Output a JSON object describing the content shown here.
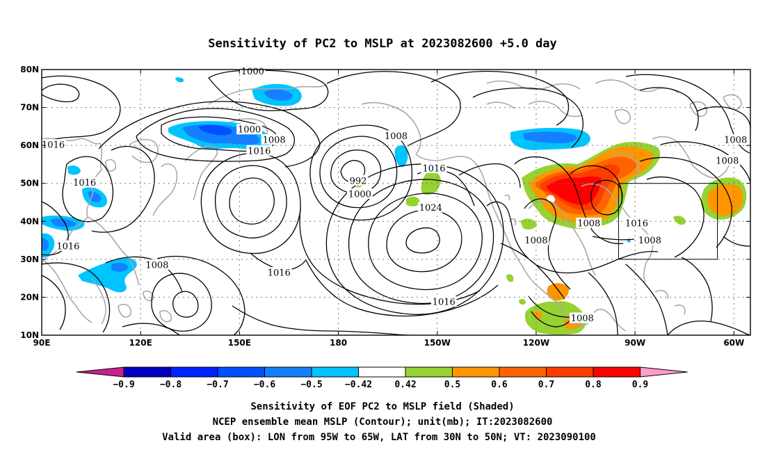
{
  "title": "Sensitivity of PC2 to MSLP at 2023082600 +5.0 day",
  "map": {
    "lon_range": [
      90,
      305
    ],
    "lat_range": [
      10,
      80
    ],
    "x_ticks": [
      {
        "lon": 90,
        "label": "90E"
      },
      {
        "lon": 120,
        "label": "120E"
      },
      {
        "lon": 150,
        "label": "150E"
      },
      {
        "lon": 180,
        "label": "180"
      },
      {
        "lon": 210,
        "label": "150W"
      },
      {
        "lon": 240,
        "label": "120W"
      },
      {
        "lon": 270,
        "label": "90W"
      },
      {
        "lon": 300,
        "label": "60W"
      }
    ],
    "y_ticks": [
      {
        "lat": 80,
        "label": "80N"
      },
      {
        "lat": 70,
        "label": "70N"
      },
      {
        "lat": 60,
        "label": "60N"
      },
      {
        "lat": 50,
        "label": "50N"
      },
      {
        "lat": 40,
        "label": "40N"
      },
      {
        "lat": 30,
        "label": "30N"
      },
      {
        "lat": 20,
        "label": "20N"
      },
      {
        "lat": 10,
        "label": "10N"
      }
    ],
    "grid": "dotted",
    "valid_box": {
      "lon_min": 265,
      "lon_max": 295,
      "lat_min": 30,
      "lat_max": 50
    },
    "contour_labels": [
      {
        "text": "1000",
        "lon": 154,
        "lat": 79.5
      },
      {
        "text": "1000",
        "lon": 153,
        "lat": 64.2
      },
      {
        "text": "1008",
        "lon": 160.5,
        "lat": 61.5
      },
      {
        "text": "1016",
        "lon": 93.5,
        "lat": 60.2
      },
      {
        "text": "1016",
        "lon": 156,
        "lat": 58.6
      },
      {
        "text": "1008",
        "lon": 197.5,
        "lat": 62.5
      },
      {
        "text": "1016",
        "lon": 209,
        "lat": 54
      },
      {
        "text": "992",
        "lon": 186,
        "lat": 50.7
      },
      {
        "text": "1000",
        "lon": 186.5,
        "lat": 47.2
      },
      {
        "text": "1024",
        "lon": 208,
        "lat": 43.6
      },
      {
        "text": "1016",
        "lon": 103,
        "lat": 50.2
      },
      {
        "text": "1016",
        "lon": 98,
        "lat": 33.5
      },
      {
        "text": "1008",
        "lon": 125,
        "lat": 28.5
      },
      {
        "text": "1016",
        "lon": 162,
        "lat": 26.5
      },
      {
        "text": "1016",
        "lon": 212,
        "lat": 18.8
      },
      {
        "text": "1008",
        "lon": 240,
        "lat": 35
      },
      {
        "text": "1008",
        "lon": 256,
        "lat": 39.5
      },
      {
        "text": "1016",
        "lon": 270.5,
        "lat": 39.5
      },
      {
        "text": "1008",
        "lon": 274.5,
        "lat": 35
      },
      {
        "text": "1008",
        "lon": 254,
        "lat": 14.5
      },
      {
        "text": "1008",
        "lon": 300.5,
        "lat": 61.5
      },
      {
        "text": "1008",
        "lon": 298,
        "lat": 56
      }
    ]
  },
  "colorbar": {
    "labels": [
      "−0.9",
      "−0.8",
      "−0.7",
      "−0.6",
      "−0.5",
      "−0.42",
      "0.42",
      "0.5",
      "0.6",
      "0.7",
      "0.8",
      "0.9"
    ],
    "colors": [
      "#0000c0",
      "#0024ff",
      "#0050ff",
      "#1480ff",
      "#00c4ff",
      "#ffffff",
      "#96d232",
      "#ff9600",
      "#ff6400",
      "#ff3c00",
      "#ff0000"
    ],
    "low_extend_color": "#c8208c",
    "high_extend_color": "#ff9cc8"
  },
  "footer": [
    "Sensitivity of EOF PC2 to MSLP field (Shaded)",
    "NCEP ensemble mean MSLP (Contour); unit(mb); IT:2023082600",
    "Valid area (box): LON from 95W to 65W, LAT from 30N to 50N; VT: 2023090100"
  ]
}
